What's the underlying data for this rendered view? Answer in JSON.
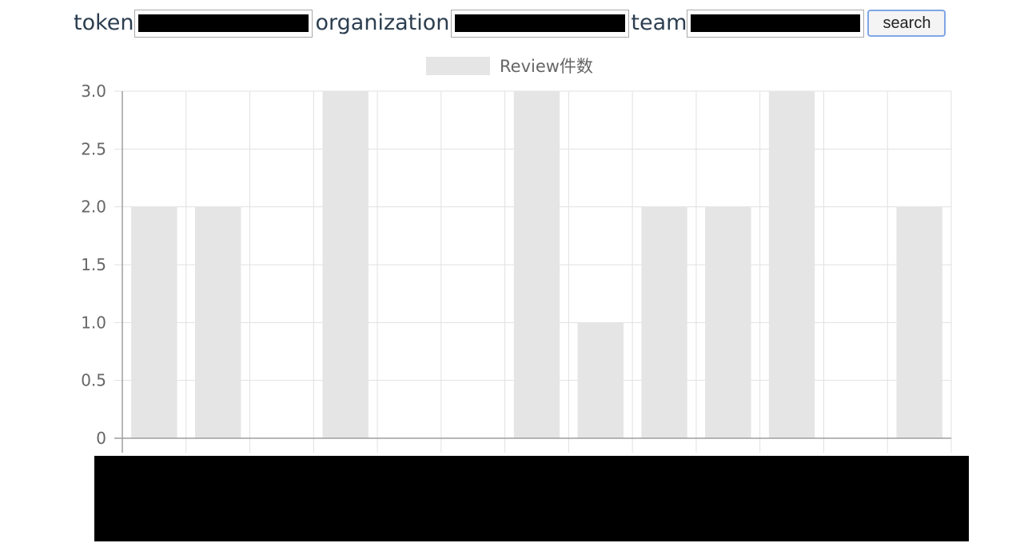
{
  "form": {
    "token_label": "token",
    "organization_label": "organization",
    "team_label": "team",
    "search_label": "search"
  },
  "chart_data": {
    "type": "bar",
    "legend": {
      "position": "top",
      "entries": [
        "Review件数"
      ]
    },
    "series": [
      {
        "name": "Review件数",
        "color": "#e5e5e5",
        "values": [
          2,
          2,
          0,
          3,
          0,
          0,
          3,
          1,
          2,
          2,
          3,
          0,
          2
        ]
      }
    ],
    "ylim": [
      0,
      3
    ],
    "yticks": [
      "0",
      "0.5",
      "1.0",
      "1.5",
      "2.0",
      "2.5",
      "3.0"
    ],
    "grid": true,
    "xlabel": "",
    "ylabel": ""
  },
  "colors": {
    "bar": "#e5e5e5",
    "grid": "#e1e1e1",
    "axis": "#9e9e9e",
    "tick_text": "#666666",
    "button_border": "#7fa6e6"
  }
}
